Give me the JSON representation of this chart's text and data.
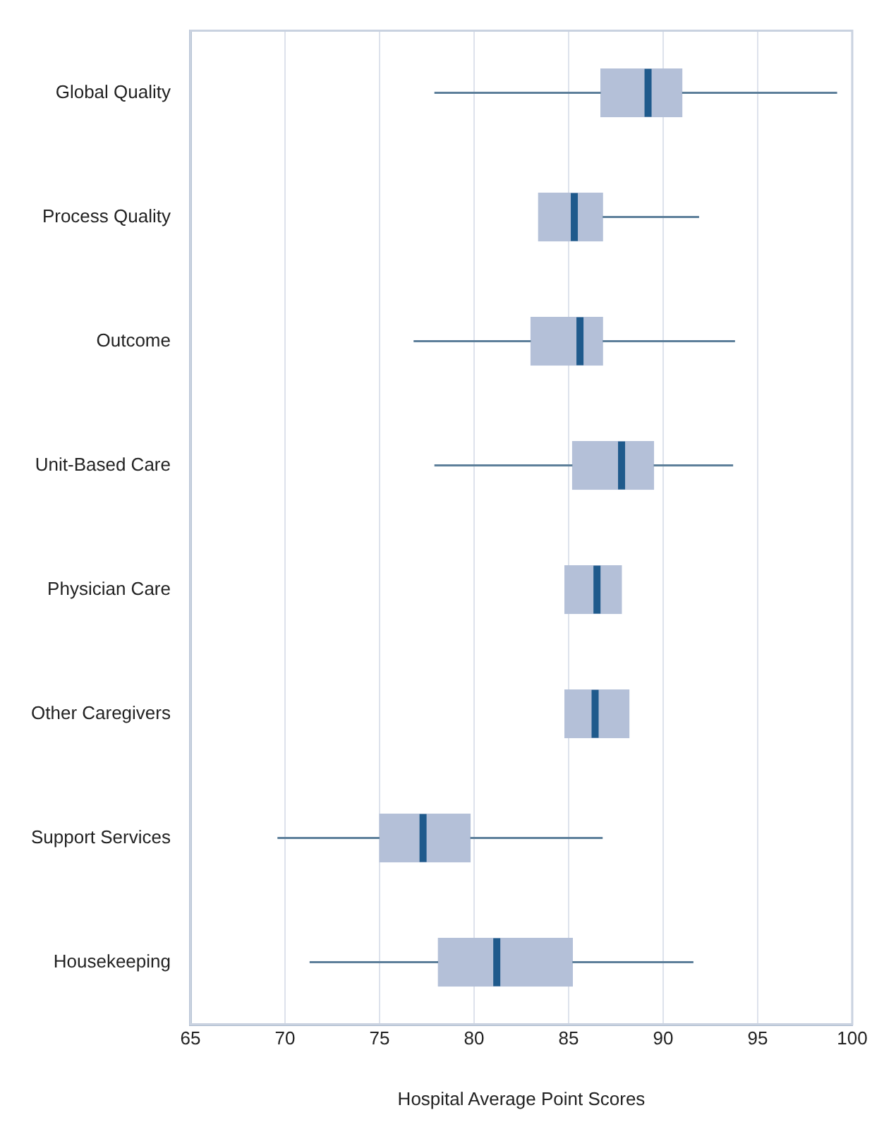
{
  "chart_data": {
    "type": "box",
    "orientation": "horizontal",
    "xlabel": "Hospital Average Point Scores",
    "categories": [
      "Global Quality",
      "Process Quality",
      "Outcome",
      "Unit-Based Care",
      "Physician Care",
      "Other Caregivers",
      "Support Services",
      "Housekeeping"
    ],
    "boxes": [
      {
        "low": 77.9,
        "q1": 86.7,
        "median": 89.2,
        "q3": 91.0,
        "high": 99.2
      },
      {
        "low": 83.4,
        "q1": 83.4,
        "median": 85.3,
        "q3": 86.8,
        "high": 91.9
      },
      {
        "low": 76.8,
        "q1": 83.0,
        "median": 85.6,
        "q3": 86.8,
        "high": 93.8
      },
      {
        "low": 77.9,
        "q1": 85.2,
        "median": 87.8,
        "q3": 89.5,
        "high": 93.7
      },
      {
        "low": 84.8,
        "q1": 84.8,
        "median": 86.5,
        "q3": 87.8,
        "high": 87.8
      },
      {
        "low": 84.8,
        "q1": 84.8,
        "median": 86.4,
        "q3": 88.2,
        "high": 88.2
      },
      {
        "low": 69.6,
        "q1": 75.0,
        "median": 77.3,
        "q3": 79.8,
        "high": 86.8
      },
      {
        "low": 71.3,
        "q1": 78.1,
        "median": 81.2,
        "q3": 85.2,
        "high": 91.6
      }
    ],
    "color": "#b4c0d8",
    "xlim": [
      65,
      100
    ],
    "xticks": [
      65,
      70,
      75,
      80,
      85,
      90,
      95,
      100
    ],
    "grid": "x",
    "legend": false
  }
}
